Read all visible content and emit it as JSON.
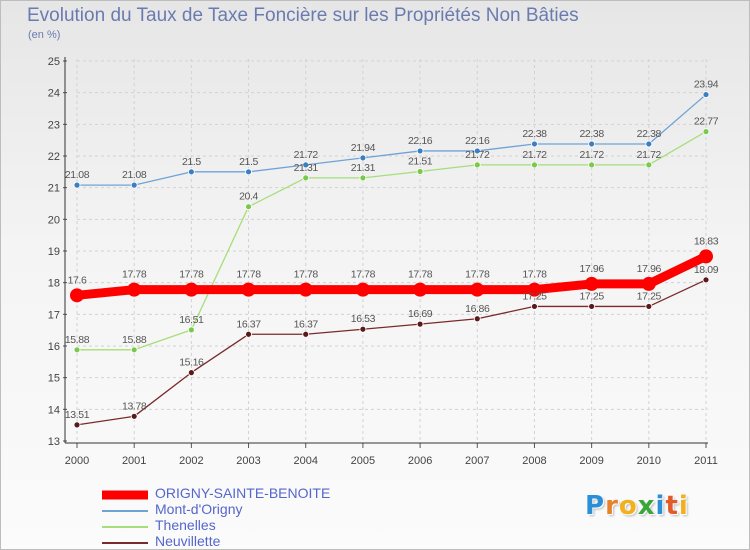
{
  "title": "Evolution du Taux de Taxe Foncière sur les Propriétés Non Bâties",
  "unit_label": "(en %)",
  "logo": {
    "letters": [
      "P",
      "r",
      "o",
      "x",
      "i",
      "t",
      "i"
    ],
    "colors": [
      "#2a8fd6",
      "#e8822a",
      "#f2b01e",
      "#3aa63a",
      "#2a8fd6",
      "#e05a2a",
      "#f2b01e"
    ]
  },
  "chart_data": {
    "type": "line",
    "title": "Evolution du Taux de Taxe Foncière sur les Propriétés Non Bâties",
    "ylabel": "(en %)",
    "xlabel": "",
    "x": [
      "2000",
      "2001",
      "2002",
      "2003",
      "2004",
      "2005",
      "2006",
      "2007",
      "2008",
      "2009",
      "2010",
      "2011"
    ],
    "ylim": [
      13,
      25
    ],
    "yticks": [
      13,
      14,
      15,
      16,
      17,
      18,
      19,
      20,
      21,
      22,
      23,
      24,
      25
    ],
    "grid": true,
    "legend_position": "bottom-left",
    "series": [
      {
        "name": "Mont-d'Origny",
        "color": "#6fa3d6",
        "marker_color": "#3a7fc4",
        "values": [
          21.08,
          21.08,
          21.5,
          21.5,
          21.72,
          21.94,
          22.16,
          22.16,
          22.38,
          22.38,
          22.38,
          23.94
        ],
        "labels": [
          "21.08",
          "21.08",
          "21.5",
          "21.5",
          "21.72",
          "21.94",
          "22.16",
          "22.16",
          "22.38",
          "22.38",
          "22.38",
          "23.94"
        ]
      },
      {
        "name": "Thenelles",
        "color": "#a6de7a",
        "marker_color": "#79c94a",
        "values": [
          15.88,
          15.88,
          16.51,
          20.4,
          21.31,
          21.31,
          21.51,
          21.72,
          21.72,
          21.72,
          21.72,
          22.77
        ],
        "labels": [
          "15.88",
          "15.88",
          "16.51",
          "20.4",
          "21.31",
          "21.31",
          "21.51",
          "21.72",
          "21.72",
          "21.72",
          "21.72",
          "22.77"
        ]
      },
      {
        "name": "Neuvillette",
        "color": "#7a2a2a",
        "marker_color": "#5a1a1a",
        "values": [
          13.51,
          13.78,
          15.16,
          16.37,
          16.37,
          16.53,
          16.69,
          16.86,
          17.25,
          17.25,
          17.25,
          18.09
        ],
        "labels": [
          "13.51",
          "13.78",
          "15.16",
          "16.37",
          "16.37",
          "16.53",
          "16.69",
          "16.86",
          "17.25",
          "17.25",
          "17.25",
          "18.09"
        ]
      },
      {
        "name": "ORIGNY-SAINTE-BENOITE",
        "color": "#ff0000",
        "marker_color": "#ff0000",
        "values": [
          17.6,
          17.78,
          17.78,
          17.78,
          17.78,
          17.78,
          17.78,
          17.78,
          17.78,
          17.96,
          17.96,
          18.83
        ],
        "labels": [
          "17.6",
          "17.78",
          "17.78",
          "17.78",
          "17.78",
          "17.78",
          "17.78",
          "17.78",
          "17.78",
          "17.96",
          "17.96",
          "18.83"
        ]
      }
    ]
  },
  "legend": [
    {
      "name": "ORIGNY-SAINTE-BENOITE",
      "color": "#ff0000"
    },
    {
      "name": "Mont-d'Origny",
      "color": "#6fa3d6"
    },
    {
      "name": "Thenelles",
      "color": "#a6de7a"
    },
    {
      "name": "Neuvillette",
      "color": "#7a2a2a"
    }
  ]
}
